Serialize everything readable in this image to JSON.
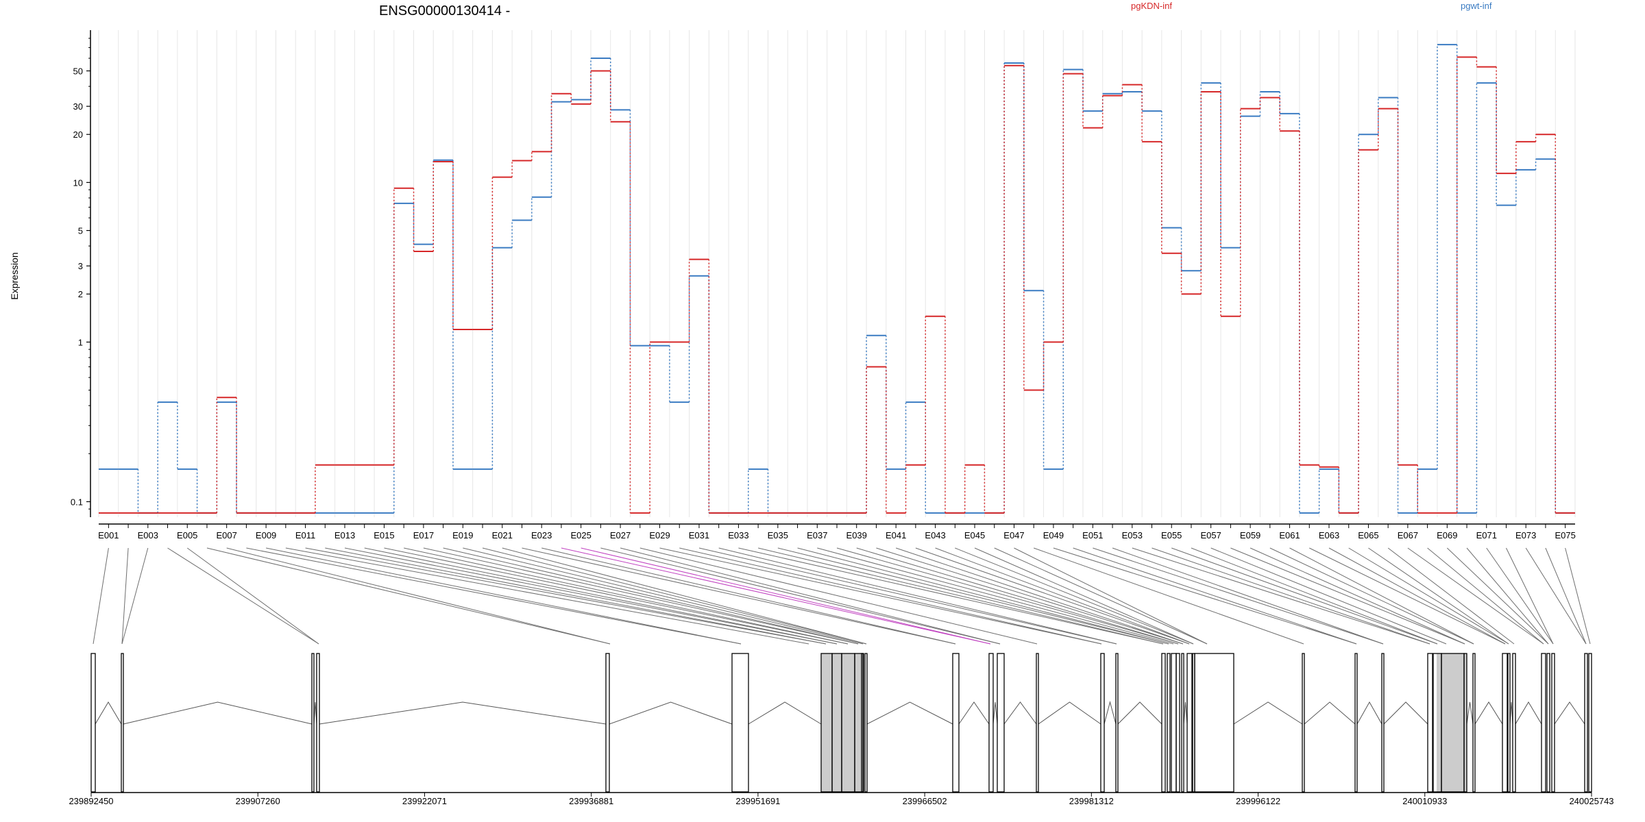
{
  "chart_data": {
    "type": "line",
    "title": "ENSG00000130414 -",
    "ylabel": "Expression",
    "yscale": "log",
    "ylim": [
      0.08,
      90
    ],
    "yticks": [
      0.1,
      1,
      2,
      3,
      5,
      10,
      20,
      30,
      50
    ],
    "ytick_labels": [
      "0.1",
      "1",
      "2",
      "3",
      "5",
      "10",
      "20",
      "30",
      "50"
    ],
    "grid": "vertical",
    "legend_placement": "top",
    "categories": [
      "E001",
      "E002",
      "E003",
      "E004",
      "E005",
      "E006",
      "E007",
      "E008",
      "E009",
      "E010",
      "E011",
      "E012",
      "E013",
      "E014",
      "E015",
      "E016",
      "E017",
      "E018",
      "E019",
      "E020",
      "E021",
      "E022",
      "E023",
      "E024",
      "E025",
      "E026",
      "E027",
      "E028",
      "E029",
      "E030",
      "E031",
      "E032",
      "E033",
      "E034",
      "E035",
      "E036",
      "E037",
      "E038",
      "E039",
      "E040",
      "E041",
      "E042",
      "E043",
      "E044",
      "E045",
      "E046",
      "E047",
      "E048",
      "E049",
      "E050",
      "E051",
      "E052",
      "E053",
      "E054",
      "E055",
      "E056",
      "E057",
      "E058",
      "E059",
      "E060",
      "E061",
      "E062",
      "E063",
      "E064",
      "E065",
      "E066",
      "E067",
      "E068",
      "E069",
      "E070",
      "E071",
      "E072",
      "E073",
      "E074",
      "E075"
    ],
    "xtick_labels": [
      "E001",
      "E003",
      "E005",
      "E007",
      "E009",
      "E011",
      "E013",
      "E015",
      "E017",
      "E019",
      "E021",
      "E023",
      "E025",
      "E027",
      "E029",
      "E031",
      "E033",
      "E035",
      "E037",
      "E039",
      "E041",
      "E043",
      "E045",
      "E047",
      "E049",
      "E051",
      "E053",
      "E055",
      "E057",
      "E059",
      "E061",
      "E063",
      "E065",
      "E067",
      "E069",
      "E071",
      "E073",
      "E075"
    ],
    "series": [
      {
        "name": "pgKDN-inf",
        "color": "#d62728",
        "values": [
          0.085,
          0.085,
          0.085,
          0.085,
          0.085,
          0.085,
          0.45,
          0.085,
          0.085,
          0.085,
          0.085,
          0.17,
          0.17,
          0.17,
          0.17,
          9.2,
          3.7,
          13.5,
          1.2,
          1.2,
          10.8,
          13.7,
          15.6,
          36.0,
          31.0,
          50.0,
          24.0,
          0.085,
          1.0,
          1.0,
          3.3,
          0.085,
          0.085,
          0.085,
          0.085,
          0.085,
          0.085,
          0.085,
          0.085,
          0.7,
          0.085,
          0.17,
          1.45,
          0.085,
          0.17,
          0.085,
          54.0,
          0.5,
          1.0,
          48.0,
          22.0,
          35.0,
          41.0,
          18.0,
          3.6,
          2.0,
          37.0,
          1.45,
          29.0,
          34.0,
          21.0,
          0.17,
          0.165,
          0.085,
          16.0,
          29.0,
          0.17,
          0.085,
          0.085,
          61.0,
          53.0,
          11.4,
          18.0,
          20.0,
          0.085
        ]
      },
      {
        "name": "pgwt-inf",
        "color": "#3a7bc2",
        "values": [
          0.16,
          0.16,
          0.085,
          0.42,
          0.16,
          0.085,
          0.42,
          0.085,
          0.085,
          0.085,
          0.085,
          0.085,
          0.085,
          0.085,
          0.085,
          7.4,
          4.1,
          13.8,
          0.16,
          0.16,
          3.9,
          5.8,
          8.1,
          32.0,
          33.0,
          60.0,
          28.5,
          0.95,
          0.95,
          0.42,
          2.6,
          0.085,
          0.085,
          0.16,
          0.085,
          0.085,
          0.085,
          0.085,
          0.085,
          1.1,
          0.16,
          0.42,
          0.085,
          0.085,
          0.085,
          0.085,
          56.0,
          2.1,
          0.16,
          51.0,
          28.0,
          36.0,
          37.0,
          28.0,
          5.2,
          2.8,
          42.0,
          3.9,
          26.0,
          37.0,
          27.0,
          0.085,
          0.16,
          0.085,
          20.0,
          34.0,
          0.085,
          0.16,
          73.0,
          0.085,
          42.0,
          7.2,
          12.0,
          14.0,
          0.085
        ]
      }
    ],
    "gene_model": {
      "coordinate_labels": [
        "239892450",
        "239907260",
        "239922071",
        "239936881",
        "239951691",
        "239966502",
        "239981312",
        "239996122",
        "240010933",
        "240025743"
      ],
      "exon_count": 75,
      "highlighted_exons": [
        "E024",
        "E025"
      ]
    }
  }
}
